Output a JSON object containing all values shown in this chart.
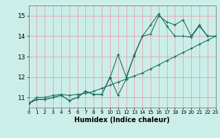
{
  "title": "",
  "xlabel": "Humidex (Indice chaleur)",
  "ylabel": "",
  "xlim": [
    0,
    23
  ],
  "ylim": [
    10.5,
    15.5
  ],
  "yticks": [
    11,
    12,
    13,
    14,
    15
  ],
  "xticks": [
    0,
    1,
    2,
    3,
    4,
    5,
    6,
    7,
    8,
    9,
    10,
    11,
    12,
    13,
    14,
    15,
    16,
    17,
    18,
    19,
    20,
    21,
    22,
    23
  ],
  "bg_color": "#cceee8",
  "grid_color": "#e8a0a8",
  "line_color": "#1a6e62",
  "line1_x": [
    0,
    1,
    2,
    3,
    4,
    5,
    6,
    7,
    8,
    9,
    10,
    11,
    12,
    13,
    14,
    15,
    16,
    17,
    18,
    19,
    20,
    21,
    22,
    23
  ],
  "line1_y": [
    10.7,
    10.9,
    10.9,
    11.0,
    11.1,
    10.85,
    11.0,
    11.3,
    11.15,
    11.15,
    11.95,
    13.1,
    12.0,
    13.05,
    14.0,
    14.55,
    15.1,
    14.5,
    14.0,
    14.0,
    13.95,
    14.5,
    14.0,
    14.0
  ],
  "line2_x": [
    0,
    1,
    2,
    3,
    4,
    5,
    6,
    7,
    8,
    9,
    10,
    11,
    12,
    13,
    14,
    15,
    16,
    17,
    18,
    19,
    20,
    21,
    22,
    23
  ],
  "line2_y": [
    10.7,
    10.9,
    10.9,
    11.0,
    11.1,
    10.85,
    11.0,
    11.3,
    11.15,
    11.15,
    12.0,
    11.1,
    11.9,
    13.1,
    14.0,
    14.1,
    15.0,
    14.7,
    14.55,
    14.8,
    14.0,
    14.55,
    14.0,
    14.0
  ],
  "line3_x": [
    0,
    1,
    2,
    3,
    4,
    5,
    6,
    7,
    8,
    9,
    10,
    11,
    12,
    13,
    14,
    15,
    16,
    17,
    18,
    19,
    20,
    21,
    22,
    23
  ],
  "line3_y": [
    10.7,
    11.0,
    11.0,
    11.1,
    11.15,
    11.1,
    11.15,
    11.2,
    11.3,
    11.45,
    11.6,
    11.75,
    11.9,
    12.05,
    12.2,
    12.4,
    12.6,
    12.8,
    13.0,
    13.2,
    13.4,
    13.6,
    13.8,
    14.0
  ]
}
